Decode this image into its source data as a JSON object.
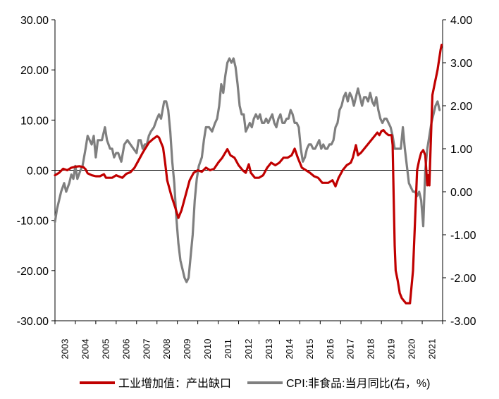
{
  "chart_data": {
    "type": "line",
    "y_left": {
      "min": -30,
      "max": 30,
      "ticks": [
        "30.00",
        "20.00",
        "10.00",
        "0.00",
        "-10.00",
        "-20.00",
        "-30.00"
      ]
    },
    "y_right": {
      "min": -3,
      "max": 4,
      "ticks": [
        "4.00",
        "3.00",
        "2.00",
        "1.00",
        "0.00",
        "-1.00",
        "-2.00",
        "-3.00"
      ]
    },
    "x_ticks": [
      "2003",
      "2004",
      "2005",
      "2006",
      "2007",
      "2008",
      "2009",
      "2010",
      "2011",
      "2012",
      "2013",
      "2014",
      "2015",
      "2016",
      "2017",
      "2018",
      "2019",
      "2020",
      "2021"
    ],
    "series": [
      {
        "name": "工业增加值：产出缺口",
        "axis": "left",
        "color": "#c00000",
        "points": [
          [
            2003.0,
            -1.0
          ],
          [
            2003.2,
            -0.5
          ],
          [
            2003.4,
            0.3
          ],
          [
            2003.6,
            0.0
          ],
          [
            2003.8,
            0.5
          ],
          [
            2004.0,
            0.7
          ],
          [
            2004.2,
            0.8
          ],
          [
            2004.4,
            0.6
          ],
          [
            2004.5,
            0.2
          ],
          [
            2004.6,
            -0.6
          ],
          [
            2004.8,
            -1.0
          ],
          [
            2005.0,
            -1.2
          ],
          [
            2005.2,
            -1.2
          ],
          [
            2005.4,
            -0.8
          ],
          [
            2005.5,
            -1.5
          ],
          [
            2005.8,
            -1.5
          ],
          [
            2006.0,
            -1.0
          ],
          [
            2006.3,
            -1.5
          ],
          [
            2006.5,
            -0.7
          ],
          [
            2006.7,
            -0.4
          ],
          [
            2006.9,
            0.5
          ],
          [
            2007.1,
            2.0
          ],
          [
            2007.3,
            3.5
          ],
          [
            2007.6,
            5.5
          ],
          [
            2007.8,
            6.2
          ],
          [
            2008.0,
            6.8
          ],
          [
            2008.1,
            6.5
          ],
          [
            2008.3,
            4.5
          ],
          [
            2008.4,
            1.5
          ],
          [
            2008.5,
            -2.0
          ],
          [
            2008.7,
            -5.0
          ],
          [
            2008.9,
            -7.5
          ],
          [
            2009.05,
            -9.5
          ],
          [
            2009.2,
            -8.0
          ],
          [
            2009.4,
            -5.0
          ],
          [
            2009.6,
            -2.0
          ],
          [
            2009.8,
            -0.5
          ],
          [
            2010.0,
            0.0
          ],
          [
            2010.2,
            -0.3
          ],
          [
            2010.4,
            0.5
          ],
          [
            2010.6,
            0.0
          ],
          [
            2010.8,
            0.3
          ],
          [
            2011.0,
            1.5
          ],
          [
            2011.2,
            2.5
          ],
          [
            2011.45,
            4.2
          ],
          [
            2011.6,
            3.0
          ],
          [
            2011.8,
            2.5
          ],
          [
            2012.0,
            1.0
          ],
          [
            2012.2,
            0.0
          ],
          [
            2012.35,
            -0.5
          ],
          [
            2012.5,
            1.2
          ],
          [
            2012.6,
            -0.5
          ],
          [
            2012.8,
            -1.5
          ],
          [
            2013.0,
            -1.5
          ],
          [
            2013.2,
            -1.0
          ],
          [
            2013.4,
            0.5
          ],
          [
            2013.6,
            1.5
          ],
          [
            2013.8,
            1.0
          ],
          [
            2014.0,
            1.5
          ],
          [
            2014.2,
            2.5
          ],
          [
            2014.4,
            2.5
          ],
          [
            2014.6,
            3.0
          ],
          [
            2014.75,
            4.3
          ],
          [
            2014.9,
            2.5
          ],
          [
            2015.1,
            0.5
          ],
          [
            2015.3,
            0.0
          ],
          [
            2015.5,
            -0.5
          ],
          [
            2015.7,
            -1.2
          ],
          [
            2015.9,
            -1.5
          ],
          [
            2016.1,
            -2.5
          ],
          [
            2016.4,
            -2.5
          ],
          [
            2016.6,
            -2.0
          ],
          [
            2016.75,
            -3.2
          ],
          [
            2016.9,
            -1.5
          ],
          [
            2017.1,
            0.0
          ],
          [
            2017.3,
            1.0
          ],
          [
            2017.5,
            1.5
          ],
          [
            2017.6,
            2.5
          ],
          [
            2017.75,
            5.0
          ],
          [
            2017.85,
            3.0
          ],
          [
            2018.0,
            3.5
          ],
          [
            2018.2,
            4.5
          ],
          [
            2018.4,
            5.5
          ],
          [
            2018.6,
            6.5
          ],
          [
            2018.8,
            7.5
          ],
          [
            2018.9,
            7.0
          ],
          [
            2019.0,
            7.8
          ],
          [
            2019.1,
            8.0
          ],
          [
            2019.2,
            7.5
          ],
          [
            2019.35,
            7.0
          ],
          [
            2019.5,
            7.0
          ],
          [
            2019.55,
            5.0
          ],
          [
            2019.6,
            -5.0
          ],
          [
            2019.65,
            -15.0
          ],
          [
            2019.7,
            -20.0
          ],
          [
            2019.8,
            -22.0
          ],
          [
            2019.9,
            -24.5
          ],
          [
            2020.0,
            -25.5
          ],
          [
            2020.2,
            -26.5
          ],
          [
            2020.4,
            -26.5
          ],
          [
            2020.55,
            -20.0
          ],
          [
            2020.65,
            -10.0
          ],
          [
            2020.75,
            0.0
          ],
          [
            2020.85,
            2.0
          ],
          [
            2020.95,
            3.5
          ],
          [
            2021.05,
            4.0
          ],
          [
            2021.15,
            3.0
          ],
          [
            2021.25,
            -3.0
          ],
          [
            2021.3,
            -1.0
          ],
          [
            2021.35,
            -3.0
          ],
          [
            2021.4,
            3.0
          ],
          [
            2021.5,
            15.0
          ],
          [
            2021.6,
            17.0
          ],
          [
            2021.75,
            20.0
          ],
          [
            2021.9,
            24.0
          ],
          [
            2021.95,
            25.0
          ]
        ]
      },
      {
        "name": "CPI:非食品:当月同比(右，%)",
        "axis": "right",
        "color": "#7f7f7f",
        "points": [
          [
            2003.0,
            -0.7
          ],
          [
            2003.1,
            -0.4
          ],
          [
            2003.2,
            -0.2
          ],
          [
            2003.3,
            0.0
          ],
          [
            2003.45,
            0.2
          ],
          [
            2003.55,
            0.0
          ],
          [
            2003.7,
            0.2
          ],
          [
            2003.8,
            0.4
          ],
          [
            2003.9,
            0.3
          ],
          [
            2004.0,
            0.6
          ],
          [
            2004.1,
            0.3
          ],
          [
            2004.25,
            0.5
          ],
          [
            2004.35,
            0.6
          ],
          [
            2004.5,
            1.0
          ],
          [
            2004.6,
            1.3
          ],
          [
            2004.7,
            1.2
          ],
          [
            2004.8,
            1.1
          ],
          [
            2004.9,
            1.3
          ],
          [
            2005.0,
            0.8
          ],
          [
            2005.1,
            1.2
          ],
          [
            2005.2,
            1.2
          ],
          [
            2005.3,
            1.2
          ],
          [
            2005.45,
            1.5
          ],
          [
            2005.55,
            1.2
          ],
          [
            2005.7,
            1.0
          ],
          [
            2005.8,
            1.0
          ],
          [
            2005.9,
            0.8
          ],
          [
            2006.0,
            0.9
          ],
          [
            2006.1,
            0.9
          ],
          [
            2006.25,
            0.7
          ],
          [
            2006.4,
            1.1
          ],
          [
            2006.55,
            1.2
          ],
          [
            2006.7,
            1.1
          ],
          [
            2006.85,
            1.0
          ],
          [
            2007.0,
            0.9
          ],
          [
            2007.1,
            1.2
          ],
          [
            2007.2,
            1.2
          ],
          [
            2007.3,
            1.0
          ],
          [
            2007.4,
            1.1
          ],
          [
            2007.5,
            1.1
          ],
          [
            2007.6,
            1.3
          ],
          [
            2007.7,
            1.4
          ],
          [
            2007.85,
            1.5
          ],
          [
            2008.0,
            1.7
          ],
          [
            2008.1,
            1.8
          ],
          [
            2008.2,
            1.7
          ],
          [
            2008.35,
            2.1
          ],
          [
            2008.45,
            2.1
          ],
          [
            2008.55,
            1.9
          ],
          [
            2008.65,
            1.4
          ],
          [
            2008.75,
            0.7
          ],
          [
            2008.85,
            0.2
          ],
          [
            2008.95,
            -0.6
          ],
          [
            2009.05,
            -1.2
          ],
          [
            2009.15,
            -1.6
          ],
          [
            2009.25,
            -1.8
          ],
          [
            2009.35,
            -2.0
          ],
          [
            2009.45,
            -2.1
          ],
          [
            2009.55,
            -2.0
          ],
          [
            2009.65,
            -1.5
          ],
          [
            2009.75,
            -1.0
          ],
          [
            2009.85,
            -0.2
          ],
          [
            2009.95,
            0.3
          ],
          [
            2010.05,
            0.6
          ],
          [
            2010.2,
            0.8
          ],
          [
            2010.3,
            1.2
          ],
          [
            2010.4,
            1.5
          ],
          [
            2010.55,
            1.5
          ],
          [
            2010.7,
            1.4
          ],
          [
            2010.85,
            1.6
          ],
          [
            2010.95,
            1.7
          ],
          [
            2011.05,
            2.0
          ],
          [
            2011.15,
            2.5
          ],
          [
            2011.25,
            2.3
          ],
          [
            2011.35,
            2.7
          ],
          [
            2011.45,
            3.0
          ],
          [
            2011.55,
            3.1
          ],
          [
            2011.65,
            3.0
          ],
          [
            2011.75,
            3.1
          ],
          [
            2011.85,
            2.9
          ],
          [
            2011.95,
            2.5
          ],
          [
            2012.05,
            2.0
          ],
          [
            2012.15,
            1.8
          ],
          [
            2012.25,
            1.8
          ],
          [
            2012.35,
            1.4
          ],
          [
            2012.45,
            1.5
          ],
          [
            2012.55,
            1.6
          ],
          [
            2012.65,
            1.5
          ],
          [
            2012.75,
            1.7
          ],
          [
            2012.85,
            1.8
          ],
          [
            2012.95,
            1.7
          ],
          [
            2013.05,
            1.8
          ],
          [
            2013.15,
            1.6
          ],
          [
            2013.25,
            1.6
          ],
          [
            2013.35,
            1.7
          ],
          [
            2013.45,
            1.6
          ],
          [
            2013.55,
            1.7
          ],
          [
            2013.65,
            1.8
          ],
          [
            2013.75,
            1.6
          ],
          [
            2013.85,
            1.5
          ],
          [
            2013.95,
            1.7
          ],
          [
            2014.05,
            1.8
          ],
          [
            2014.15,
            1.6
          ],
          [
            2014.25,
            1.6
          ],
          [
            2014.35,
            1.7
          ],
          [
            2014.45,
            1.7
          ],
          [
            2014.55,
            1.9
          ],
          [
            2014.65,
            1.8
          ],
          [
            2014.75,
            1.6
          ],
          [
            2014.85,
            1.6
          ],
          [
            2014.95,
            1.5
          ],
          [
            2015.05,
            1.0
          ],
          [
            2015.15,
            0.7
          ],
          [
            2015.25,
            0.8
          ],
          [
            2015.35,
            1.0
          ],
          [
            2015.45,
            1.1
          ],
          [
            2015.55,
            1.1
          ],
          [
            2015.65,
            1.0
          ],
          [
            2015.75,
            1.0
          ],
          [
            2015.85,
            1.1
          ],
          [
            2015.95,
            1.2
          ],
          [
            2016.05,
            1.0
          ],
          [
            2016.15,
            1.1
          ],
          [
            2016.25,
            1.0
          ],
          [
            2016.35,
            1.0
          ],
          [
            2016.45,
            1.1
          ],
          [
            2016.55,
            1.1
          ],
          [
            2016.65,
            1.2
          ],
          [
            2016.75,
            1.5
          ],
          [
            2016.85,
            1.6
          ],
          [
            2016.95,
            1.9
          ],
          [
            2017.05,
            2.0
          ],
          [
            2017.15,
            2.2
          ],
          [
            2017.25,
            2.3
          ],
          [
            2017.35,
            2.1
          ],
          [
            2017.45,
            2.3
          ],
          [
            2017.55,
            2.2
          ],
          [
            2017.65,
            2.0
          ],
          [
            2017.75,
            2.2
          ],
          [
            2017.85,
            2.4
          ],
          [
            2017.95,
            2.2
          ],
          [
            2018.05,
            2.0
          ],
          [
            2018.15,
            2.2
          ],
          [
            2018.25,
            2.2
          ],
          [
            2018.35,
            2.1
          ],
          [
            2018.45,
            2.3
          ],
          [
            2018.55,
            2.1
          ],
          [
            2018.65,
            2.0
          ],
          [
            2018.75,
            2.2
          ],
          [
            2018.85,
            1.9
          ],
          [
            2018.95,
            1.7
          ],
          [
            2019.05,
            1.6
          ],
          [
            2019.15,
            1.7
          ],
          [
            2019.25,
            1.7
          ],
          [
            2019.35,
            1.6
          ],
          [
            2019.45,
            1.5
          ],
          [
            2019.55,
            1.3
          ],
          [
            2019.65,
            1.0
          ],
          [
            2019.75,
            1.0
          ],
          [
            2019.85,
            1.0
          ],
          [
            2019.95,
            1.0
          ],
          [
            2020.05,
            1.5
          ],
          [
            2020.15,
            1.0
          ],
          [
            2020.25,
            0.6
          ],
          [
            2020.35,
            0.2
          ],
          [
            2020.45,
            0.1
          ],
          [
            2020.55,
            0.0
          ],
          [
            2020.65,
            0.0
          ],
          [
            2020.75,
            -0.1
          ],
          [
            2020.85,
            0.0
          ],
          [
            2020.95,
            -0.2
          ],
          [
            2021.05,
            -0.8
          ],
          [
            2021.15,
            0.5
          ],
          [
            2021.25,
            1.0
          ],
          [
            2021.35,
            1.3
          ],
          [
            2021.45,
            1.6
          ],
          [
            2021.55,
            1.8
          ],
          [
            2021.65,
            2.0
          ],
          [
            2021.75,
            2.1
          ],
          [
            2021.85,
            1.9
          ]
        ]
      }
    ]
  }
}
